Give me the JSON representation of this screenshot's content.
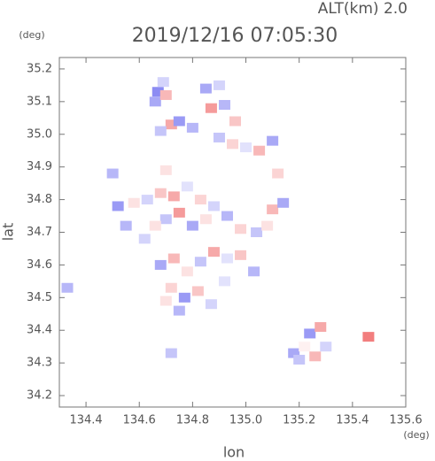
{
  "chart_data": {
    "type": "scatter",
    "title": "2019/12/16 07:05:30",
    "subtitle": "ALT(km) 2.0",
    "x_label": "lon",
    "y_label": "lat",
    "x_unit": "(deg)",
    "y_unit": "(deg)",
    "xlim": [
      134.3,
      135.6
    ],
    "ylim": [
      34.165,
      35.235
    ],
    "xticks": [
      134.4,
      134.6,
      134.8,
      {
        "value": 135,
        "label": "135.0"
      },
      135.2,
      135.4,
      135.6
    ],
    "yticks": [
      34.2,
      34.3,
      34.4,
      34.5,
      34.6,
      34.7,
      34.8,
      34.9,
      {
        "value": 35,
        "label": "35.0"
      },
      35.1,
      35.2
    ],
    "positive_color": "#f07070",
    "negative_color": "#6f6ff0",
    "x": [
      134.67,
      134.69,
      134.66,
      134.7,
      134.72,
      134.75,
      134.68,
      134.85,
      134.9,
      134.87,
      134.92,
      134.96,
      134.9,
      134.95,
      135.0,
      135.05,
      135.1,
      134.8,
      134.52,
      134.58,
      134.63,
      134.68,
      134.73,
      134.78,
      134.83,
      134.7,
      134.75,
      134.8,
      134.66,
      134.88,
      134.85,
      134.93,
      134.98,
      135.04,
      135.1,
      135.14,
      135.08,
      134.55,
      134.62,
      134.68,
      134.73,
      134.78,
      134.83,
      134.88,
      134.93,
      134.98,
      135.03,
      134.72,
      134.77,
      134.82,
      134.87,
      134.75,
      134.7,
      134.92,
      135.18,
      135.22,
      135.26,
      135.3,
      135.24,
      135.28,
      135.2,
      134.33,
      135.46,
      134.72,
      134.5,
      134.7,
      135.12
    ],
    "y": [
      35.13,
      35.16,
      35.1,
      35.12,
      35.03,
      35.04,
      35.01,
      35.14,
      35.15,
      35.08,
      35.09,
      35.04,
      34.99,
      34.97,
      34.96,
      34.95,
      34.98,
      35.02,
      34.78,
      34.79,
      34.8,
      34.82,
      34.81,
      34.84,
      34.8,
      34.74,
      34.76,
      34.72,
      34.72,
      34.78,
      34.74,
      34.75,
      34.71,
      34.7,
      34.77,
      34.79,
      34.72,
      34.72,
      34.68,
      34.6,
      34.62,
      34.58,
      34.61,
      34.64,
      34.62,
      34.63,
      34.58,
      34.53,
      34.5,
      34.52,
      34.48,
      34.46,
      34.49,
      34.55,
      34.33,
      34.35,
      34.32,
      34.35,
      34.39,
      34.41,
      34.31,
      34.53,
      34.38,
      34.33,
      34.88,
      34.89,
      34.88
    ],
    "values": [
      -0.8,
      -0.3,
      -0.6,
      0.5,
      0.6,
      -0.7,
      -0.4,
      -0.6,
      -0.3,
      0.7,
      -0.5,
      0.4,
      -0.4,
      0.3,
      -0.2,
      0.5,
      -0.6,
      -0.5,
      -0.7,
      0.2,
      -0.3,
      0.4,
      0.6,
      -0.2,
      0.3,
      -0.4,
      0.7,
      -0.6,
      0.2,
      -0.3,
      0.2,
      -0.5,
      0.3,
      -0.4,
      0.5,
      -0.6,
      0.2,
      -0.5,
      -0.3,
      -0.6,
      0.5,
      0.2,
      -0.4,
      0.6,
      -0.2,
      0.4,
      -0.5,
      0.3,
      -0.7,
      0.4,
      -0.3,
      -0.5,
      0.2,
      -0.2,
      -0.6,
      0.1,
      0.5,
      -0.3,
      -0.7,
      0.6,
      -0.4,
      -0.5,
      0.9,
      -0.4,
      -0.5,
      0.2,
      0.3
    ]
  }
}
